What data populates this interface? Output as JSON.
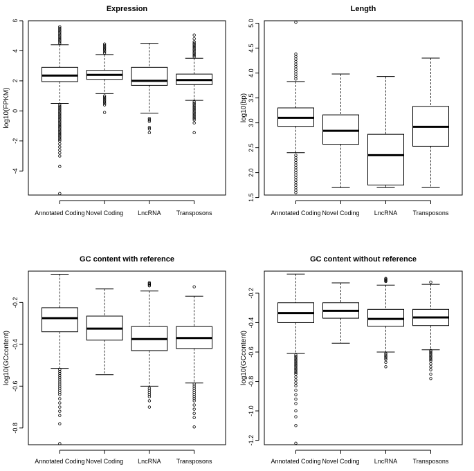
{
  "chart_data": [
    {
      "type": "boxplot",
      "title": "Expression",
      "ylabel": "log10(FPKM)",
      "xlabel": "",
      "categories": [
        "Annotated Coding",
        "Novel Coding",
        "LncRNA",
        "Transposons"
      ],
      "ylim": [
        -5.6,
        6.0
      ],
      "yticks": [
        "-4",
        "-2",
        "0",
        "2",
        "4",
        "6"
      ],
      "boxes": [
        {
          "whisker_low": 0.5,
          "q1": 1.95,
          "median": 2.35,
          "q3": 2.9,
          "whisker_high": 4.4,
          "outliers": [
            0.4,
            0.3,
            0.2,
            0.1,
            0.0,
            -0.1,
            -0.2,
            -0.3,
            -0.4,
            -0.5,
            -0.6,
            -0.7,
            -0.8,
            -0.9,
            -1.0,
            -1.1,
            -1.2,
            -1.3,
            -1.4,
            -1.5,
            -1.6,
            -1.7,
            -1.8,
            -1.9,
            -2.0,
            -2.2,
            -2.4,
            -2.6,
            -2.8,
            -3.0,
            -3.7,
            -5.5,
            4.5,
            4.6,
            4.7,
            4.8,
            4.9,
            5.0,
            5.1,
            5.2,
            5.3,
            5.4,
            5.5,
            5.6
          ]
        },
        {
          "whisker_low": 1.15,
          "q1": 2.1,
          "median": 2.4,
          "q3": 2.7,
          "whisker_high": 3.75,
          "outliers": [
            1.0,
            0.9,
            0.8,
            0.7,
            0.6,
            0.5,
            0.4,
            -0.1,
            3.85,
            3.95,
            4.05,
            4.15,
            4.25,
            4.35,
            4.45
          ]
        },
        {
          "whisker_low": -0.15,
          "q1": 1.7,
          "median": 2.0,
          "q3": 2.9,
          "whisker_high": 4.5,
          "outliers": [
            -0.5,
            -0.6,
            -0.7,
            -1.1,
            -1.2,
            -1.45
          ]
        },
        {
          "whisker_low": 0.7,
          "q1": 1.75,
          "median": 2.05,
          "q3": 2.45,
          "whisker_high": 3.5,
          "outliers": [
            0.6,
            0.5,
            0.4,
            0.3,
            0.2,
            0.1,
            0.0,
            -0.1,
            -0.2,
            -0.3,
            -0.4,
            -0.5,
            -0.6,
            -0.8,
            -1.45,
            3.6,
            3.7,
            3.8,
            3.9,
            4.0,
            4.1,
            4.2,
            4.3,
            4.4,
            4.5,
            4.6,
            4.8,
            5.05
          ]
        }
      ]
    },
    {
      "type": "boxplot",
      "title": "Length",
      "ylabel": "log10(bp)",
      "xlabel": "",
      "categories": [
        "Annotated Coding",
        "Novel Coding",
        "LncRNA",
        "Transposons"
      ],
      "ylim": [
        1.55,
        5.05
      ],
      "yticks": [
        "1.5",
        "2.0",
        "2.5",
        "3.0",
        "3.5",
        "4.0",
        "4.5",
        "5.0"
      ],
      "boxes": [
        {
          "whisker_low": 2.4,
          "q1": 2.93,
          "median": 3.1,
          "q3": 3.3,
          "whisker_high": 3.83,
          "outliers": [
            2.35,
            2.3,
            2.25,
            2.2,
            2.15,
            2.1,
            2.05,
            2.0,
            1.95,
            1.9,
            1.85,
            1.8,
            1.75,
            1.7,
            1.65,
            1.6,
            3.88,
            3.93,
            3.98,
            4.03,
            4.08,
            4.13,
            4.18,
            4.23,
            4.28,
            4.33,
            4.38,
            5.02
          ]
        },
        {
          "whisker_low": 1.7,
          "q1": 2.57,
          "median": 2.84,
          "q3": 3.16,
          "whisker_high": 3.98,
          "outliers": []
        },
        {
          "whisker_low": 1.7,
          "q1": 1.75,
          "median": 2.35,
          "q3": 2.77,
          "whisker_high": 3.93,
          "outliers": []
        },
        {
          "whisker_low": 1.7,
          "q1": 2.53,
          "median": 2.92,
          "q3": 3.33,
          "whisker_high": 4.3,
          "outliers": []
        }
      ]
    },
    {
      "type": "boxplot",
      "title": "GC content with reference",
      "ylabel": "log10(GCcontent)",
      "xlabel": "",
      "categories": [
        "Annotated Coding",
        "Novel Coding",
        "LncRNA",
        "Transposons"
      ],
      "ylim": [
        -0.88,
        -0.05
      ],
      "yticks": [
        "-0.8",
        "-0.6",
        "-0.4",
        "-0.2"
      ],
      "boxes": [
        {
          "whisker_low": -0.515,
          "q1": -0.34,
          "median": -0.275,
          "q3": -0.225,
          "whisker_high": -0.065,
          "outliers": [
            -0.52,
            -0.53,
            -0.54,
            -0.55,
            -0.56,
            -0.57,
            -0.58,
            -0.59,
            -0.6,
            -0.61,
            -0.62,
            -0.63,
            -0.64,
            -0.66,
            -0.68,
            -0.7,
            -0.72,
            -0.74,
            -0.78,
            -0.875
          ]
        },
        {
          "whisker_low": -0.545,
          "q1": -0.38,
          "median": -0.325,
          "q3": -0.265,
          "whisker_high": -0.135,
          "outliers": []
        },
        {
          "whisker_low": -0.6,
          "q1": -0.43,
          "median": -0.375,
          "q3": -0.315,
          "whisker_high": -0.145,
          "outliers": [
            -0.105,
            -0.11,
            -0.115,
            -0.12,
            -0.61,
            -0.62,
            -0.63,
            -0.64,
            -0.65,
            -0.67,
            -0.7
          ]
        },
        {
          "whisker_low": -0.585,
          "q1": -0.42,
          "median": -0.37,
          "q3": -0.315,
          "whisker_high": -0.17,
          "outliers": [
            -0.125,
            -0.59,
            -0.6,
            -0.61,
            -0.62,
            -0.63,
            -0.64,
            -0.65,
            -0.66,
            -0.67,
            -0.69,
            -0.71,
            -0.73,
            -0.75,
            -0.795
          ]
        }
      ]
    },
    {
      "type": "boxplot",
      "title": "GC content without reference",
      "ylabel": "log10(GCcontent)",
      "xlabel": "",
      "categories": [
        "Annotated Coding",
        "Novel Coding",
        "LncRNA",
        "Transposons"
      ],
      "ylim": [
        -1.23,
        -0.05
      ],
      "yticks": [
        "-1.2",
        "-1.0",
        "-0.8",
        "-0.6",
        "-0.4",
        "-0.2"
      ],
      "boxes": [
        {
          "whisker_low": -0.61,
          "q1": -0.4,
          "median": -0.335,
          "q3": -0.265,
          "whisker_high": -0.07,
          "outliers": [
            -0.62,
            -0.63,
            -0.64,
            -0.65,
            -0.66,
            -0.67,
            -0.68,
            -0.69,
            -0.7,
            -0.71,
            -0.72,
            -0.73,
            -0.74,
            -0.75,
            -0.77,
            -0.79,
            -0.81,
            -0.83,
            -0.86,
            -0.89,
            -0.92,
            -0.95,
            -1.0,
            -1.04,
            -1.1,
            -1.22
          ]
        },
        {
          "whisker_low": -0.54,
          "q1": -0.37,
          "median": -0.32,
          "q3": -0.265,
          "whisker_high": -0.13,
          "outliers": []
        },
        {
          "whisker_low": -0.6,
          "q1": -0.425,
          "median": -0.375,
          "q3": -0.31,
          "whisker_high": -0.145,
          "outliers": [
            -0.1,
            -0.105,
            -0.11,
            -0.115,
            -0.12,
            -0.61,
            -0.62,
            -0.63,
            -0.64,
            -0.65,
            -0.67,
            -0.7
          ]
        },
        {
          "whisker_low": -0.585,
          "q1": -0.42,
          "median": -0.365,
          "q3": -0.31,
          "whisker_high": -0.14,
          "outliers": [
            -0.125,
            -0.59,
            -0.6,
            -0.61,
            -0.62,
            -0.63,
            -0.64,
            -0.65,
            -0.66,
            -0.68,
            -0.7,
            -0.72,
            -0.75,
            -0.78
          ]
        }
      ]
    }
  ]
}
